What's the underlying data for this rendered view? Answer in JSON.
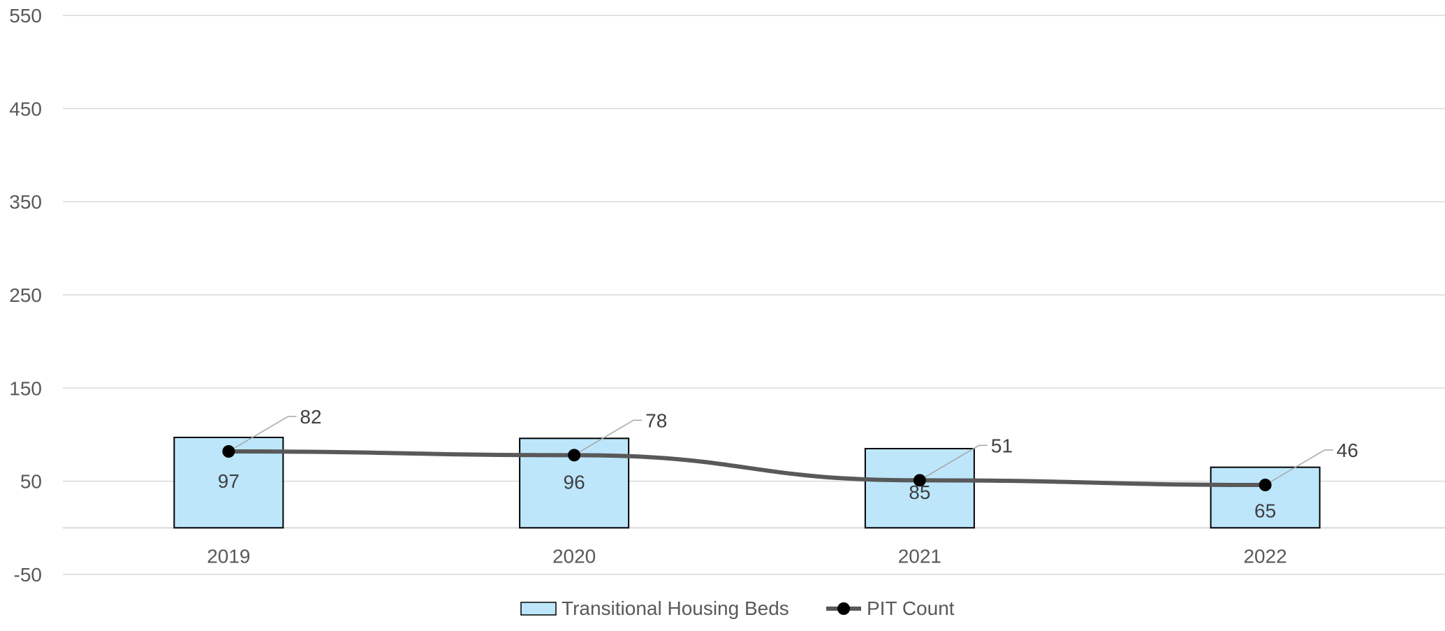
{
  "chart_data": {
    "type": "bar",
    "categories": [
      "2019",
      "2020",
      "2021",
      "2022"
    ],
    "series": [
      {
        "name": "Transitional Housing Beds",
        "type": "bar",
        "values": [
          97,
          96,
          85,
          65
        ],
        "color": "#bde6fb",
        "stroke": "#000000"
      },
      {
        "name": "PIT Count",
        "type": "line",
        "values": [
          82,
          78,
          51,
          46
        ],
        "color": "#595959",
        "marker": "#000000"
      }
    ],
    "ylim": [
      -50,
      550
    ],
    "yticks": [
      550,
      450,
      350,
      250,
      150,
      50,
      -50
    ],
    "grid": true,
    "legend": "bottom-center",
    "title": "",
    "xlabel": "",
    "ylabel": ""
  }
}
